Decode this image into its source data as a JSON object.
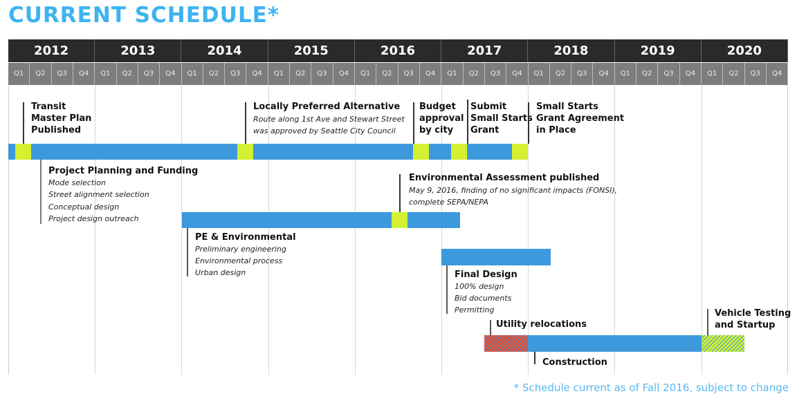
{
  "title": "CURRENT SCHEDULE*",
  "years": [
    "2012",
    "2013",
    "2014",
    "2015",
    "2016",
    "2017",
    "2018",
    "2019",
    "2020"
  ],
  "quarters": [
    "Q1",
    "Q2",
    "Q3",
    "Q4"
  ],
  "milestones": {
    "tmp": [
      "Transit",
      "Master Plan",
      "Published"
    ],
    "lpa": {
      "title": "Locally Preferred Alternative",
      "lines": [
        "Route along 1st Ave and Stewart Street",
        "was approved by Seattle City Council"
      ]
    },
    "budget": [
      "Budget",
      "approval",
      "by city"
    ],
    "submit": [
      "Submit",
      "Small Starts",
      "Grant"
    ],
    "grant": [
      "Small Starts",
      "Grant Agreement",
      "in Place"
    ],
    "env": {
      "title": "Environmental Assessment published",
      "lines": [
        "May 9, 2016, finding of no significant impacts (FONSI),",
        "complete SEPA/NEPA"
      ]
    }
  },
  "phases": {
    "planning": {
      "title": "Project Planning and Funding",
      "items": [
        "Mode selection",
        "Street alignment selection",
        "Conceptual design",
        "Project design outreach"
      ]
    },
    "pe": {
      "title": "PE & Environmental",
      "items": [
        "Preliminary engineering",
        "Environmental process",
        "Urban design"
      ]
    },
    "final": {
      "title": "Final Design",
      "items": [
        "100% design",
        "Bid documents",
        "Permitting"
      ]
    },
    "utility": "Utility relocations",
    "construction": "Construction",
    "vehicle": [
      "Vehicle Testing",
      "and Startup"
    ]
  },
  "colors": {
    "accent": "#3db3f0",
    "bar": "#3c99db",
    "milestone": "#d4f031",
    "utility": "#e84b2e"
  },
  "footnote": "* Schedule current as of Fall 2016, subject to change"
}
